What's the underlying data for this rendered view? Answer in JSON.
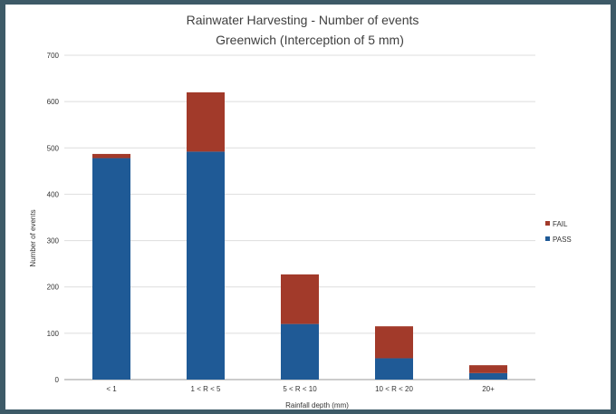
{
  "chart_data": {
    "type": "bar",
    "stacked": true,
    "title": "Rainwater Harvesting - Number of events",
    "subtitle": "Greenwich (Interception of 5 mm)",
    "xlabel": "Rainfall depth (mm)",
    "ylabel": "Number of events",
    "ylim": [
      0,
      700
    ],
    "yticks": [
      "0",
      "100",
      "200",
      "300",
      "400",
      "500",
      "600",
      "700"
    ],
    "categories": [
      "< 1",
      "1 < R < 5",
      "5 < R < 10",
      "10 < R < 20",
      "20+"
    ],
    "series": [
      {
        "name": "PASS",
        "color": "#1f5a96",
        "values": [
          478,
          492,
          120,
          46,
          14
        ]
      },
      {
        "name": "FAIL",
        "color": "#a23a2a",
        "values": [
          9,
          128,
          107,
          69,
          17
        ]
      }
    ],
    "legend_order": [
      "FAIL",
      "PASS"
    ],
    "legend_position": "right",
    "grid": "horizontal"
  }
}
